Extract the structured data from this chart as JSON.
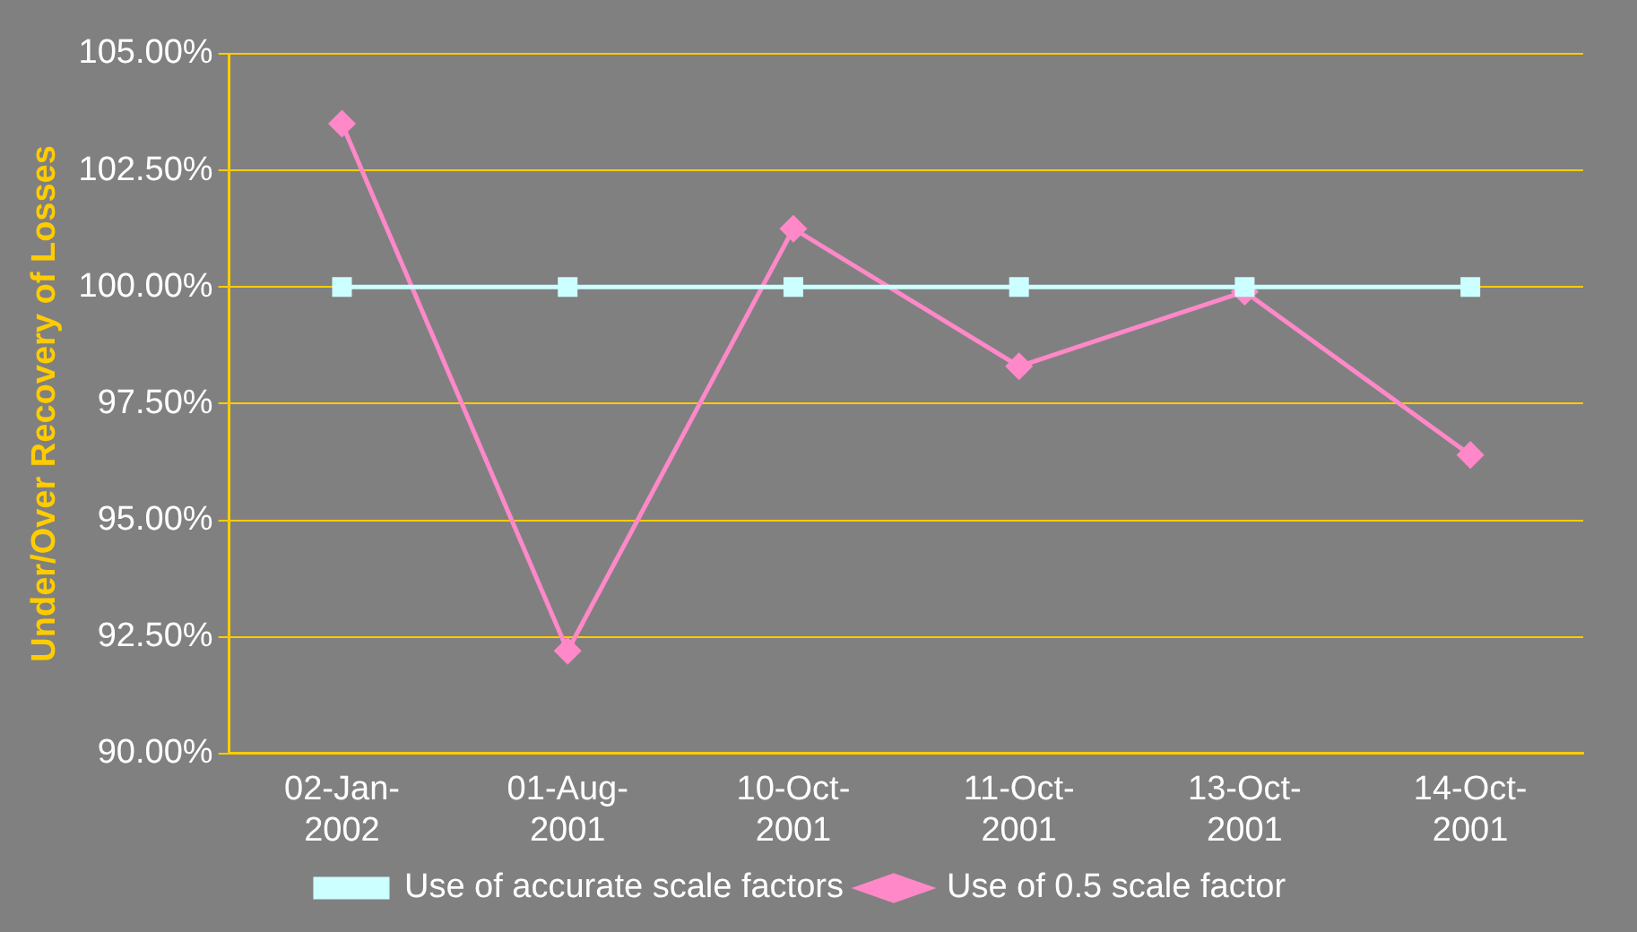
{
  "chart_data": {
    "type": "line",
    "ylabel": "Under/Over Recovery of Losses",
    "categories": [
      "02-Jan-2002",
      "01-Aug-2001",
      "10-Oct-2001",
      "11-Oct-2001",
      "13-Oct-2001",
      "14-Oct-2001"
    ],
    "series": [
      {
        "name": "Use of 0.5 scale factor",
        "color": "#ff88c8",
        "marker": "diamond",
        "values": [
          103.5,
          92.2,
          101.25,
          98.3,
          99.9,
          96.4
        ]
      },
      {
        "name": "Use of accurate scale factors",
        "color": "#ccffff",
        "marker": "square",
        "values": [
          100,
          100,
          100,
          100,
          100,
          100
        ]
      }
    ],
    "ylim": [
      90,
      105
    ],
    "yticks": [
      {
        "value": 90,
        "label": "90.00%"
      },
      {
        "value": 92.5,
        "label": "92.50%"
      },
      {
        "value": 95,
        "label": "95.00%"
      },
      {
        "value": 97.5,
        "label": "97.50%"
      },
      {
        "value": 100,
        "label": "100.00%"
      },
      {
        "value": 102.5,
        "label": "102.50%"
      },
      {
        "value": 105,
        "label": "105.00%"
      }
    ],
    "grid": "y",
    "legend": "bottom",
    "line_style": "solid"
  }
}
